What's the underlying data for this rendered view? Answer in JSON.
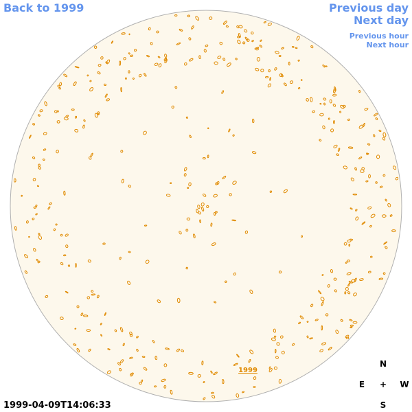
{
  "nav": {
    "back": "Back to 1999",
    "previous_day": "Previous day",
    "next_day": "Next day",
    "previous_hour": "Previous hour",
    "next_hour": "Next hour"
  },
  "timestamp": "1999-04-09T14:06:33",
  "compass": {
    "north": "N",
    "east": "E",
    "center": "+",
    "west": "W",
    "south": "S"
  },
  "disk_label": "1999"
}
